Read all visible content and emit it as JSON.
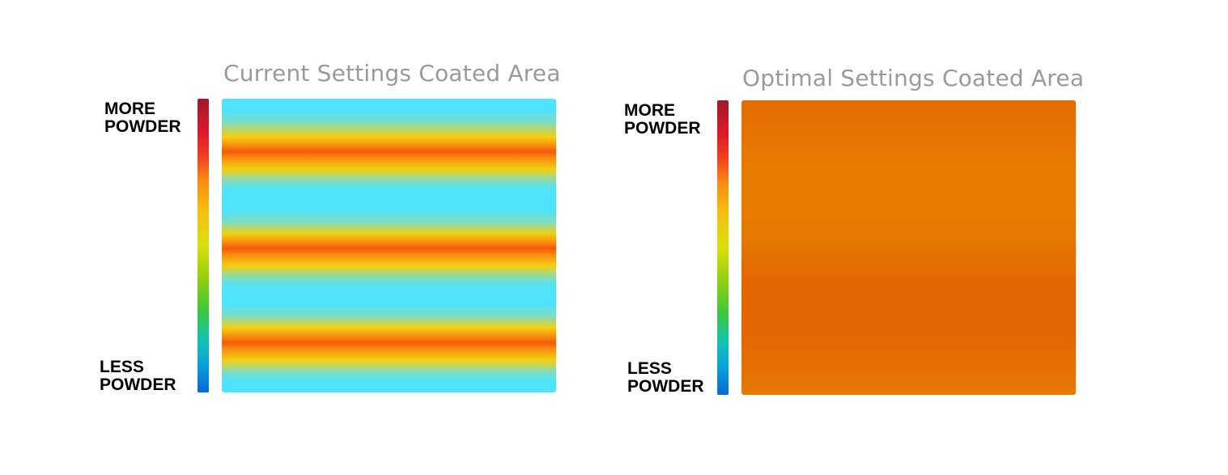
{
  "panels": [
    {
      "title": "Current Settings Coated Area",
      "scale_top": "MORE\nPOWDER",
      "scale_bottom": "LESS\nPOWDER"
    },
    {
      "title": "Optimal Settings Coated Area",
      "scale_top": "MORE\nPOWDER",
      "scale_bottom": "LESS\nPOWDER"
    }
  ],
  "colors": {
    "title": "#9a9a9a",
    "label": "#000000",
    "current_band_low": "#4ee3fa",
    "current_band_high": "#f55a0a",
    "optimal_fill": "#e57200"
  }
}
